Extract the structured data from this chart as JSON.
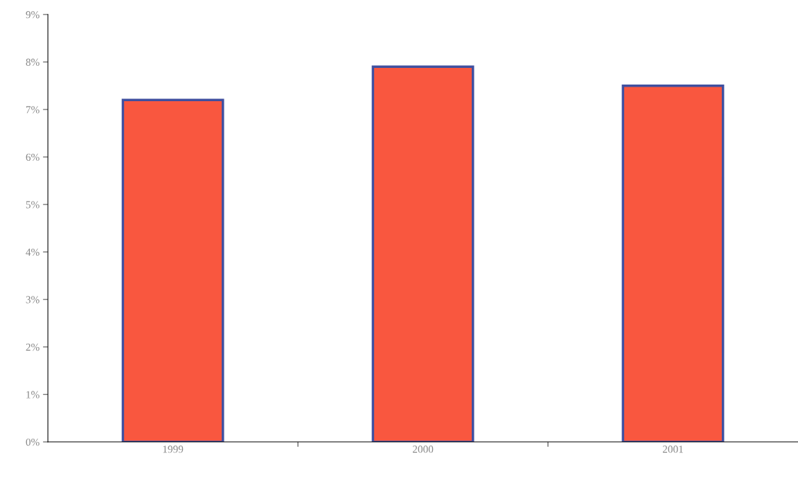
{
  "chart_data": {
    "type": "bar",
    "categories": [
      "1999",
      "2000",
      "2001"
    ],
    "values": [
      7.2,
      7.9,
      7.5
    ],
    "color": "#f9573f",
    "ylim": [
      0,
      9
    ],
    "yticks": [
      {
        "value": 0,
        "label": "0%"
      },
      {
        "value": 1,
        "label": "1%"
      },
      {
        "value": 2,
        "label": "2%"
      },
      {
        "value": 3,
        "label": "3%"
      },
      {
        "value": 4,
        "label": "4%"
      },
      {
        "value": 5,
        "label": "5%"
      },
      {
        "value": 6,
        "label": "6%"
      },
      {
        "value": 7,
        "label": "7%"
      },
      {
        "value": 8,
        "label": "8%"
      },
      {
        "value": 9,
        "label": "9%"
      }
    ],
    "grid": false,
    "legend": false
  }
}
